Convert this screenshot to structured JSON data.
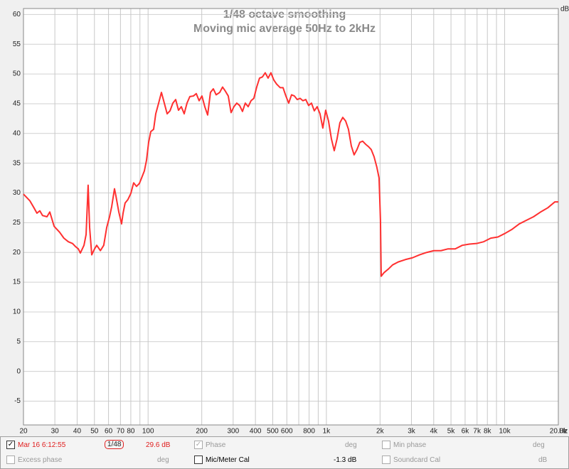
{
  "chart_data": {
    "type": "line",
    "title": "1/48 octave smoothing",
    "subtitle": "Moving mic average 50Hz to 2kHz",
    "x_unit": "Hz",
    "y_unit": "dB",
    "xscale": "log",
    "grid": true,
    "xlim": [
      20,
      20000
    ],
    "ylim": [
      -9,
      61
    ],
    "xticks": [
      20,
      30,
      40,
      50,
      60,
      70,
      80,
      100,
      200,
      300,
      400,
      500,
      600,
      800,
      {
        "value": 1000,
        "label": "1k"
      },
      {
        "value": 2000,
        "label": "2k"
      },
      {
        "value": 3000,
        "label": "3k"
      },
      {
        "value": 4000,
        "label": "4k"
      },
      {
        "value": 5000,
        "label": "5k"
      },
      {
        "value": 6000,
        "label": "6k"
      },
      {
        "value": 7000,
        "label": "7k"
      },
      {
        "value": 8000,
        "label": "8k"
      },
      {
        "value": 10000,
        "label": "10k"
      },
      {
        "value": 20000,
        "label": "20.0k"
      }
    ],
    "xminor": [
      90,
      700,
      900,
      9000
    ],
    "yticks": [
      60,
      55,
      50,
      45,
      40,
      35,
      30,
      25,
      20,
      15,
      10,
      5,
      0,
      -5
    ],
    "x": [
      20,
      21.7,
      22.9,
      23.8,
      24.7,
      25.6,
      27.1,
      28.1,
      29.7,
      31.9,
      33.7,
      35.7,
      37.7,
      39.1,
      40.6,
      41.7,
      43.7,
      44.9,
      46.1,
      47.0,
      48.3,
      50.1,
      51.5,
      54.0,
      56.4,
      58.6,
      60.8,
      62.5,
      64.8,
      66.0,
      68.5,
      71.0,
      72.4,
      74.3,
      77.1,
      80.0,
      83.0,
      86.1,
      89.4,
      91.9,
      95.3,
      98.0,
      100.7,
      103.5,
      107.4,
      110.4,
      114.6,
      118.8,
      123.3,
      127.9,
      132.7,
      137.7,
      142.8,
      148.1,
      153.6,
      159.4,
      165.3,
      171.5,
      179.6,
      186.3,
      193.3,
      200.5,
      208.0,
      215.8,
      223.8,
      232.2,
      240.9,
      252.2,
      261.7,
      271.4,
      281.6,
      292.1,
      303.0,
      314.4,
      326.1,
      338.4,
      351.0,
      364.2,
      377.8,
      391.9,
      406.6,
      421.8,
      437.6,
      454.0,
      471.0,
      488.6,
      506.9,
      525.8,
      550.6,
      571.3,
      592.7,
      614.8,
      637.8,
      661.7,
      686.4,
      712.1,
      738.7,
      766.4,
      795.0,
      824.8,
      855.7,
      887.7,
      920.9,
      955.3,
      991.1,
      1028,
      1067,
      1107,
      1148,
      1191,
      1236,
      1282,
      1330,
      1380,
      1431,
      1485,
      1540,
      1598,
      1658,
      1720,
      1784,
      1851,
      1920,
      1975,
      2011,
      2030,
      2105,
      2225,
      2351,
      2530,
      2774,
      3041,
      3334,
      3655,
      4007,
      4393,
      4816,
      5280,
      5789,
      6345,
      6956,
      7627,
      8361,
      9167,
      10050,
      11018,
      12080,
      13243,
      14519,
      15915,
      17451,
      19132,
      20000
    ],
    "series": [
      {
        "name": "Mar 16 6:12:55",
        "color": "#ff3030",
        "values": [
          29.8,
          28.7,
          27.5,
          26.6,
          27.0,
          26.2,
          26.0,
          26.8,
          24.4,
          23.4,
          22.4,
          21.8,
          21.5,
          21.0,
          20.6,
          19.9,
          21.2,
          23.0,
          31.3,
          24.2,
          19.6,
          20.6,
          21.2,
          20.3,
          21.2,
          24.2,
          26.0,
          27.7,
          30.7,
          29.5,
          26.8,
          24.8,
          26.6,
          28.3,
          28.9,
          29.9,
          31.7,
          31.1,
          31.6,
          32.5,
          33.7,
          35.5,
          38.5,
          40.3,
          40.7,
          43.3,
          45.1,
          46.9,
          45.1,
          43.3,
          43.8,
          45.1,
          45.7,
          43.9,
          44.5,
          43.3,
          45.1,
          46.2,
          46.3,
          46.7,
          45.5,
          46.3,
          44.5,
          43.1,
          46.9,
          47.5,
          46.5,
          46.9,
          47.8,
          47.1,
          46.3,
          43.5,
          44.5,
          45.1,
          44.7,
          43.7,
          45.1,
          44.5,
          45.5,
          45.9,
          47.8,
          49.3,
          49.5,
          50.2,
          49.3,
          50.2,
          49.0,
          48.3,
          47.7,
          47.7,
          46.3,
          45.1,
          46.5,
          46.3,
          45.7,
          45.9,
          45.5,
          45.7,
          44.7,
          45.1,
          43.8,
          44.5,
          43.3,
          40.9,
          43.9,
          42.1,
          39.1,
          37.1,
          39.1,
          41.8,
          42.7,
          42.1,
          40.7,
          37.9,
          36.4,
          37.3,
          38.5,
          38.7,
          38.2,
          37.8,
          37.3,
          36.1,
          34.3,
          32.5,
          25.4,
          16.0,
          16.6,
          17.2,
          17.9,
          18.4,
          18.8,
          19.1,
          19.6,
          20.0,
          20.3,
          20.3,
          20.6,
          20.6,
          21.2,
          21.4,
          21.5,
          21.8,
          22.4,
          22.6,
          23.2,
          23.9,
          24.8,
          25.4,
          26.0,
          26.8,
          27.5,
          28.5,
          28.5
        ]
      }
    ]
  },
  "measurement_panel": {
    "row1": {
      "smoothing": "1/48",
      "level": "29.6 dB",
      "phase": "Phase",
      "phase_unit": "deg",
      "min_phase": "Min phase",
      "min_phase_unit": "deg"
    },
    "row2": {
      "excess_phase": "Excess phase",
      "excess_phase_unit": "deg",
      "mic_cal": "Mic/Meter Cal",
      "mic_cal_value": "-1.3 dB",
      "soundcard_cal": "Soundcard Cal",
      "soundcard_cal_unit": "dB"
    }
  }
}
